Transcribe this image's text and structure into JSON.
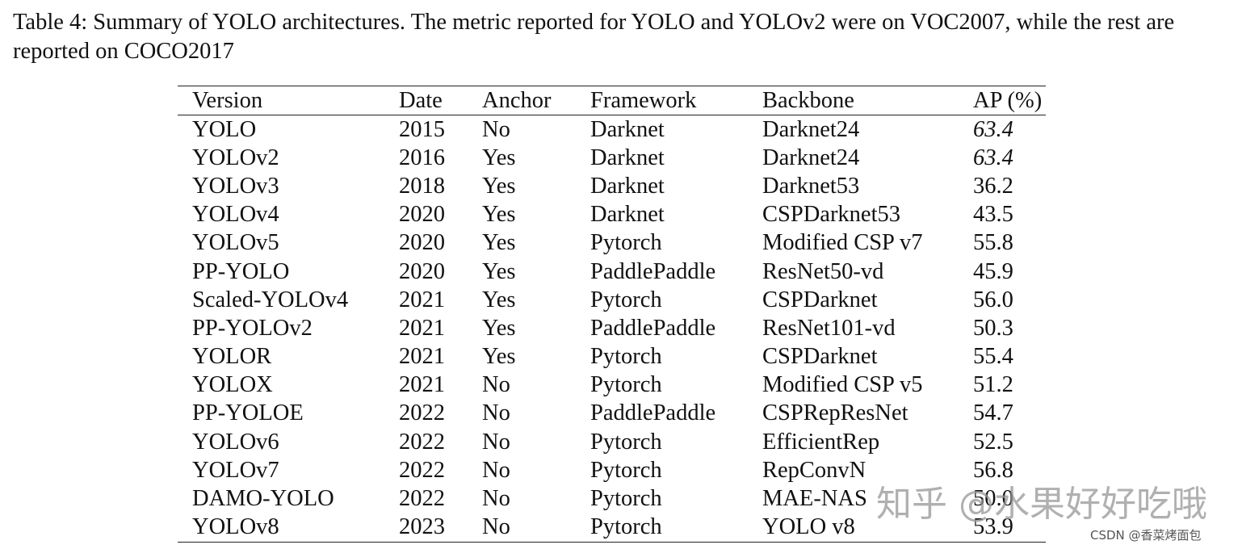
{
  "caption": "Table 4: Summary of YOLO architectures. The metric reported for YOLO and YOLOv2 were on VOC2007, while the rest are reported on COCO2017",
  "table": {
    "columns": [
      "Version",
      "Date",
      "Anchor",
      "Framework",
      "Backbone",
      "AP (%)"
    ],
    "rows": [
      [
        "YOLO",
        "2015",
        "No",
        "Darknet",
        "Darknet24",
        "63.4"
      ],
      [
        "YOLOv2",
        "2016",
        "Yes",
        "Darknet",
        "Darknet24",
        "63.4"
      ],
      [
        "YOLOv3",
        "2018",
        "Yes",
        "Darknet",
        "Darknet53",
        "36.2"
      ],
      [
        "YOLOv4",
        "2020",
        "Yes",
        "Darknet",
        "CSPDarknet53",
        "43.5"
      ],
      [
        "YOLOv5",
        "2020",
        "Yes",
        "Pytorch",
        "Modified CSP v7",
        "55.8"
      ],
      [
        "PP-YOLO",
        "2020",
        "Yes",
        "PaddlePaddle",
        "ResNet50-vd",
        "45.9"
      ],
      [
        "Scaled-YOLOv4",
        "2021",
        "Yes",
        "Pytorch",
        "CSPDarknet",
        "56.0"
      ],
      [
        "PP-YOLOv2",
        "2021",
        "Yes",
        "PaddlePaddle",
        "ResNet101-vd",
        "50.3"
      ],
      [
        "YOLOR",
        "2021",
        "Yes",
        "Pytorch",
        "CSPDarknet",
        "55.4"
      ],
      [
        "YOLOX",
        "2021",
        "No",
        "Pytorch",
        "Modified CSP v5",
        "51.2"
      ],
      [
        "PP-YOLOE",
        "2022",
        "No",
        "PaddlePaddle",
        "CSPRepResNet",
        "54.7"
      ],
      [
        "YOLOv6",
        "2022",
        "No",
        "Pytorch",
        "EfficientRep",
        "52.5"
      ],
      [
        "YOLOv7",
        "2022",
        "No",
        "Pytorch",
        "RepConvN",
        "56.8"
      ],
      [
        "DAMO-YOLO",
        "2022",
        "No",
        "Pytorch",
        "MAE-NAS",
        "50.0"
      ],
      [
        "YOLOv8",
        "2023",
        "No",
        "Pytorch",
        "YOLO v8",
        "53.9"
      ]
    ]
  },
  "watermarks": [
    "知乎 @水果好好吃哦",
    "CSDN @香菜烤面包"
  ]
}
